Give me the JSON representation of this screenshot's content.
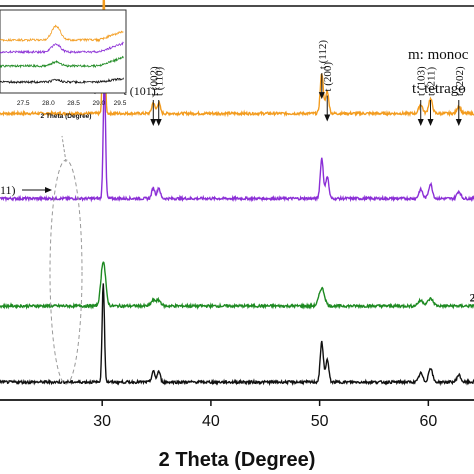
{
  "chart_data": {
    "type": "line",
    "xlabel": "2 Theta (Degree)",
    "xlim": [
      20.6,
      64.2
    ],
    "ylim": [
      0,
      4.4
    ],
    "x_ticks": [
      30,
      40,
      50,
      60
    ],
    "legend": [
      "m: monoc",
      "t: tetrago"
    ],
    "series": [
      {
        "color": "#f39c1f",
        "offset": 3.2,
        "peaks": [
          [
            30.15,
            1.4,
            0.15
          ],
          [
            34.7,
            0.12,
            0.2
          ],
          [
            35.2,
            0.12,
            0.2
          ],
          [
            50.2,
            0.45,
            0.2
          ],
          [
            50.7,
            0.25,
            0.2
          ],
          [
            59.3,
            0.1,
            0.25
          ],
          [
            60.2,
            0.16,
            0.25
          ],
          [
            62.8,
            0.08,
            0.25
          ]
        ]
      },
      {
        "color": "#8b2fd6",
        "offset": 2.25,
        "peaks": [
          [
            30.2,
            1.35,
            0.15
          ],
          [
            34.7,
            0.12,
            0.2
          ],
          [
            35.2,
            0.12,
            0.2
          ],
          [
            50.2,
            0.45,
            0.2
          ],
          [
            50.7,
            0.25,
            0.2
          ],
          [
            59.3,
            0.1,
            0.25
          ],
          [
            60.2,
            0.16,
            0.25
          ],
          [
            62.8,
            0.08,
            0.25
          ]
        ]
      },
      {
        "color": "#1e8a22",
        "offset": 1.05,
        "peaks": [
          [
            30.1,
            0.5,
            0.3
          ],
          [
            34.7,
            0.06,
            0.3
          ],
          [
            35.2,
            0.06,
            0.3
          ],
          [
            50.2,
            0.2,
            0.35
          ],
          [
            59.3,
            0.06,
            0.35
          ],
          [
            60.2,
            0.08,
            0.35
          ]
        ]
      },
      {
        "color": "#111111",
        "offset": 0.2,
        "peaks": [
          [
            30.1,
            1.1,
            0.15
          ],
          [
            34.7,
            0.12,
            0.2
          ],
          [
            35.2,
            0.12,
            0.2
          ],
          [
            50.2,
            0.45,
            0.2
          ],
          [
            50.7,
            0.25,
            0.2
          ],
          [
            59.3,
            0.1,
            0.25
          ],
          [
            60.2,
            0.16,
            0.25
          ],
          [
            62.8,
            0.08,
            0.25
          ]
        ]
      }
    ],
    "annotations": [
      {
        "text": "t (002)",
        "x": 34.7,
        "y": 3.35
      },
      {
        "text": "t (110)",
        "x": 35.2,
        "y": 3.35
      },
      {
        "text": "t (112)",
        "x": 50.2,
        "y": 3.65
      },
      {
        "text": "t (200)",
        "x": 50.7,
        "y": 3.4
      },
      {
        "text": "t (103)",
        "x": 59.3,
        "y": 3.35
      },
      {
        "text": "t (211)",
        "x": 60.2,
        "y": 3.35
      },
      {
        "text": "t (202)",
        "x": 62.8,
        "y": 3.35
      },
      {
        "text": "t (101)",
        "x": 31.4,
        "y": 3.45
      },
      {
        "text": "11)",
        "x": 21.0,
        "y": 2.3
      },
      {
        "text": "2",
        "x": 63.8,
        "y": 1.1
      }
    ],
    "inset": {
      "xlim": [
        27.0,
        29.5
      ],
      "x_ticks": [
        27.5,
        28.0,
        28.5,
        29.0,
        29.5
      ],
      "xlabel": "2 Theta (Degree)"
    }
  }
}
